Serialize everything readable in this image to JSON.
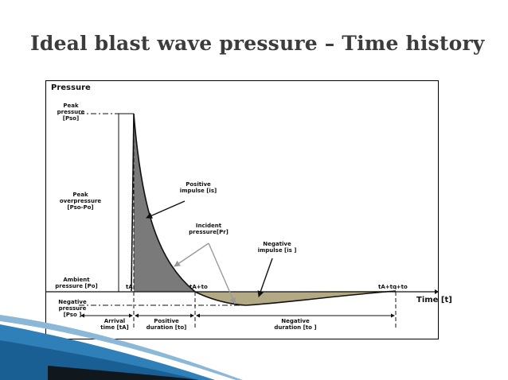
{
  "slide": {
    "title": "Ideal blast wave pressure – Time history"
  },
  "diagram": {
    "axes": {
      "y_title": "Pressure",
      "x_title": "Time [t]"
    },
    "y_labels": {
      "peak_pressure": "Peak\npressure\n[Pso]",
      "peak_overpressure": "Peak\noverpressure\n[Pso-Po]",
      "ambient_pressure": "Ambient\npressure [Po]",
      "negative_pressure": "Negative\npressure\n[Pso ]"
    },
    "time_marks": {
      "arrival": "tA",
      "positive_end": "tA+to",
      "negative_end": "tA+to+to"
    },
    "annotations": {
      "positive_impulse": "Positive\nimpulse [is]",
      "incident_pressure": "Incident\npressure[Pr]",
      "negative_impulse": "Negative\nimpulse [is ]"
    },
    "durations": {
      "arrival_time": "Arrival\ntime [tA]",
      "positive_duration": "Positive\nduration [to]",
      "negative_duration": "Negative\nduration [to ]"
    },
    "colors": {
      "positive_fill": "#7a7a7a",
      "negative_fill": "#b3a985",
      "curve": "#111111",
      "incident_arrow": "#9a9a9a"
    }
  }
}
